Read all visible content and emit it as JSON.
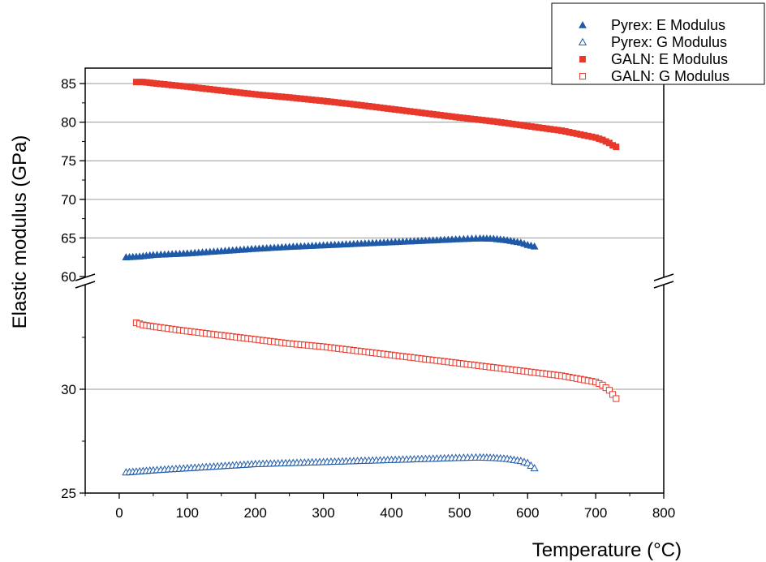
{
  "chart_data": {
    "type": "scatter",
    "xlabel": "Temperature (°C)",
    "ylabel": "Elastic modulus (GPa)",
    "xlim": [
      -50,
      800
    ],
    "xticks": [
      0,
      100,
      200,
      300,
      400,
      500,
      600,
      700,
      800
    ],
    "y_axis_break": {
      "lower_range": [
        25,
        35
      ],
      "upper_range": [
        60,
        87
      ]
    },
    "yticks_upper": [
      60,
      65,
      70,
      75,
      80,
      85
    ],
    "yticks_lower": [
      25,
      30
    ],
    "grid": true,
    "legend_position": "top-right",
    "series": [
      {
        "name": "Pyrex: E Modulus",
        "marker": "filled-triangle",
        "color": "#1f5aa8",
        "x": [
          10,
          30,
          50,
          100,
          150,
          200,
          250,
          300,
          350,
          400,
          450,
          500,
          530,
          550,
          570,
          590,
          600,
          610
        ],
        "y": [
          62.5,
          62.6,
          62.8,
          63.0,
          63.3,
          63.6,
          63.85,
          64.05,
          64.25,
          64.45,
          64.65,
          64.85,
          64.95,
          64.9,
          64.7,
          64.4,
          64.1,
          63.9
        ]
      },
      {
        "name": "Pyrex: G Modulus",
        "marker": "open-triangle",
        "color": "#1f5aa8",
        "x": [
          10,
          30,
          50,
          100,
          150,
          200,
          250,
          300,
          350,
          400,
          450,
          500,
          530,
          550,
          570,
          590,
          600,
          610
        ],
        "y": [
          26.0,
          26.05,
          26.1,
          26.2,
          26.3,
          26.4,
          26.45,
          26.5,
          26.55,
          26.6,
          26.65,
          26.7,
          26.72,
          26.7,
          26.65,
          26.55,
          26.45,
          26.2
        ]
      },
      {
        "name": "GALN: E Modulus",
        "marker": "filled-square",
        "color": "#e8392b",
        "x": [
          25,
          35,
          55,
          100,
          150,
          200,
          250,
          300,
          350,
          400,
          450,
          500,
          550,
          600,
          650,
          700,
          710,
          720,
          725,
          730
        ],
        "y": [
          85.2,
          85.2,
          85.0,
          84.6,
          84.1,
          83.6,
          83.2,
          82.75,
          82.25,
          81.7,
          81.15,
          80.6,
          80.1,
          79.5,
          78.9,
          78.0,
          77.7,
          77.3,
          77.0,
          76.8
        ]
      },
      {
        "name": "GALN: G Modulus",
        "marker": "open-square",
        "color": "#e8392b",
        "x": [
          25,
          35,
          55,
          100,
          150,
          200,
          250,
          300,
          350,
          400,
          450,
          500,
          550,
          600,
          650,
          700,
          710,
          720,
          725,
          730
        ],
        "y": [
          33.2,
          33.1,
          33.0,
          32.8,
          32.6,
          32.4,
          32.2,
          32.05,
          31.85,
          31.65,
          31.45,
          31.25,
          31.05,
          30.85,
          30.65,
          30.35,
          30.2,
          29.95,
          29.75,
          29.55
        ]
      }
    ]
  }
}
